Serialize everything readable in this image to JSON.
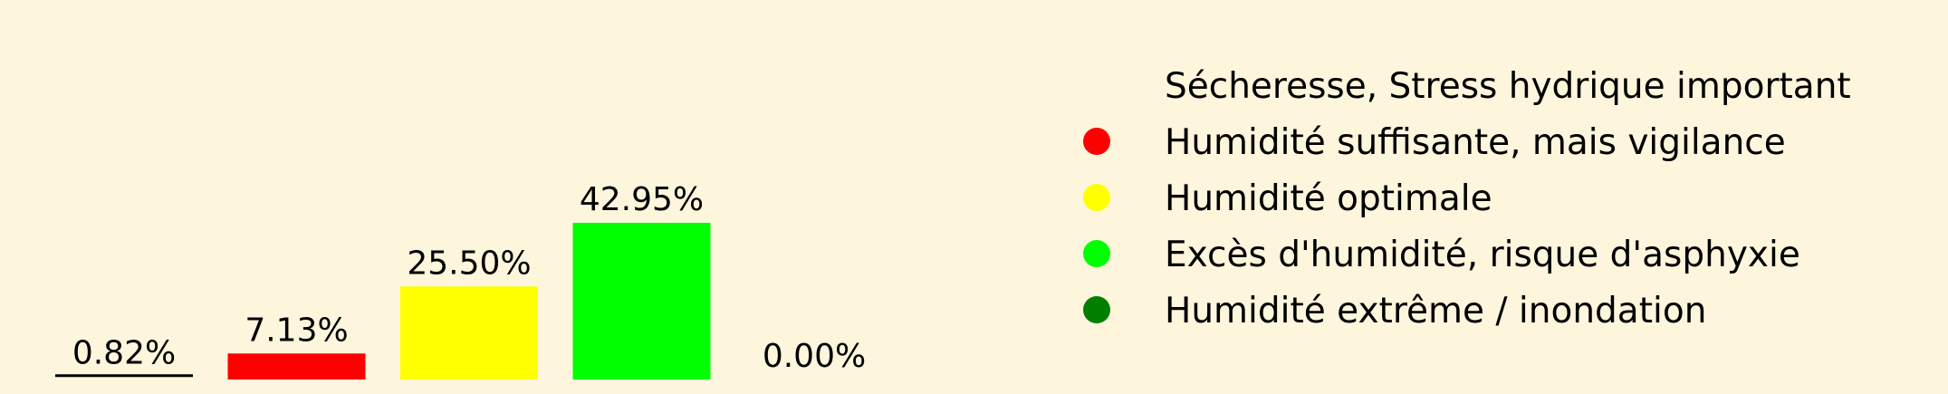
{
  "chart_data": {
    "type": "bar",
    "categories": [
      "Sécheresse, Stress hydrique important",
      "Humidité suffisante, mais vigilance",
      "Humidité optimale",
      "Excès d'humidité, risque d'asphyxie",
      "Humidité extrême / inondation"
    ],
    "values": [
      0.82,
      7.13,
      25.5,
      42.95,
      0.0
    ],
    "data_labels": [
      "0.82%",
      "7.13%",
      "25.50%",
      "42.95%",
      "0.00%"
    ],
    "colors": [
      "#fdf6dc",
      "#ff0000",
      "#ffff00",
      "#00ff00",
      "#007f00"
    ],
    "legend_marker_colors": [
      "#fdf6dc",
      "#ff0000",
      "#ffff00",
      "#00ff00",
      "#007f00"
    ],
    "title": "",
    "xlabel": "",
    "ylabel": "",
    "ylim": [
      0,
      43
    ],
    "grid": false,
    "legend_position": "right",
    "background": "#fdf6dc"
  }
}
